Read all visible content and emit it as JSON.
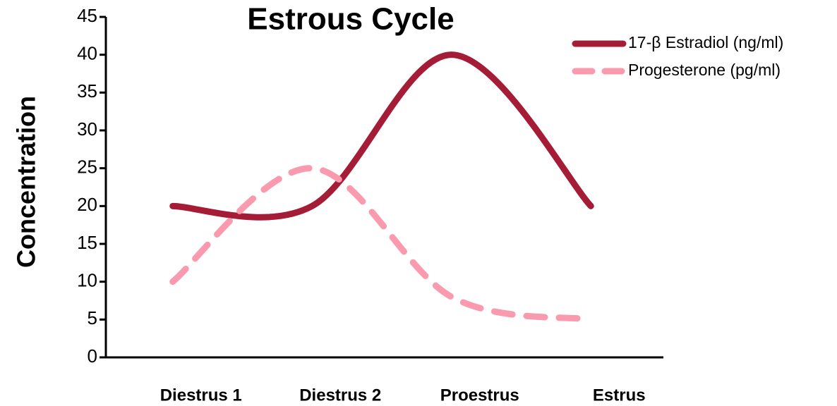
{
  "chart_data": {
    "type": "line",
    "title": "Estrous Cycle",
    "y_label": "Concentration",
    "categories": [
      "Diestrus 1",
      "Diestrus 2",
      "Proestrus",
      "Estrus"
    ],
    "series": [
      {
        "name": "17-β Estradiol (ng/ml)",
        "color": "#a51c36",
        "dashed": false,
        "values": [
          20,
          20,
          40,
          20
        ]
      },
      {
        "name": "Progesterone (pg/ml)",
        "color": "#f99aaf",
        "dashed": true,
        "values": [
          10,
          25,
          8,
          5
        ]
      }
    ],
    "ylim": [
      0,
      45
    ],
    "yticks": [
      0,
      5,
      10,
      15,
      20,
      25,
      30,
      35,
      40,
      45
    ],
    "grid": false,
    "smooth": true,
    "legend": "top-right"
  }
}
